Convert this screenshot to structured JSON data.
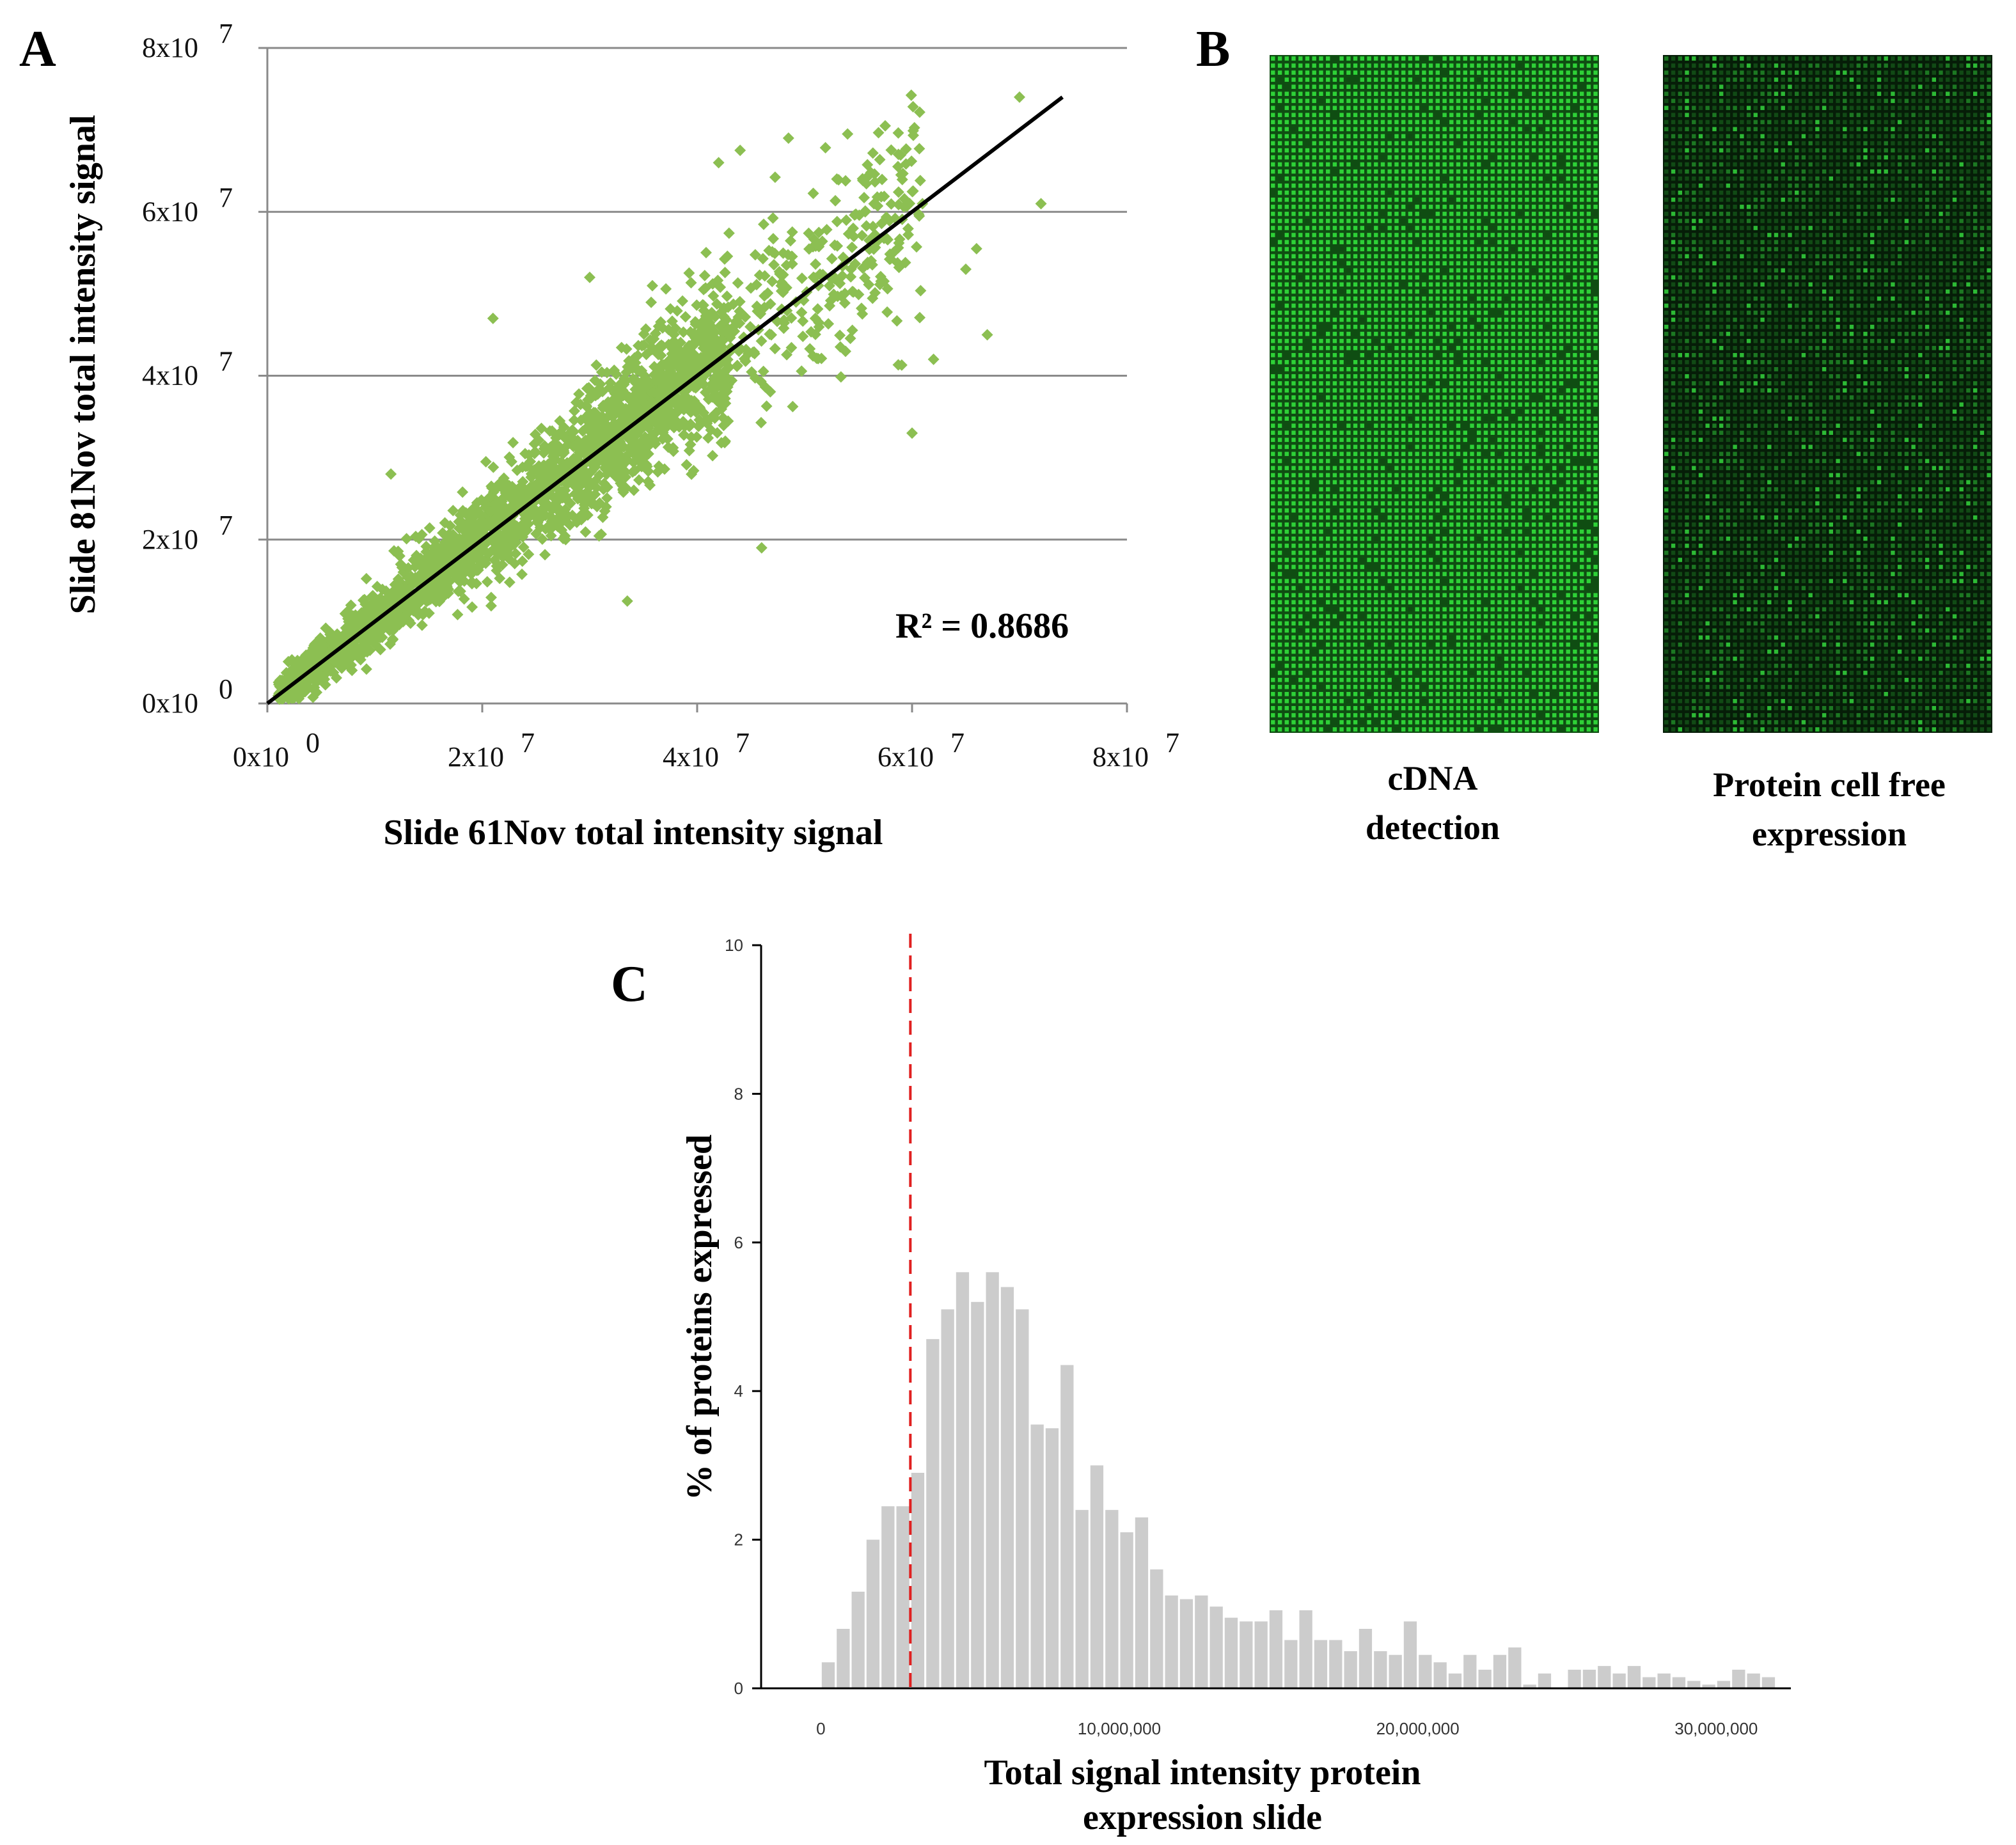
{
  "panels": {
    "a": {
      "letter": "A"
    },
    "b": {
      "letter": "B"
    },
    "c": {
      "letter": "C"
    }
  },
  "chart_data": [
    {
      "panel": "A",
      "type": "scatter",
      "xlabel": "Slide 61Nov  total intensity signal",
      "ylabel": "Slide 81Nov  total intensity signal",
      "x_ticks": [
        {
          "value": 0,
          "mant": "0x10",
          "exp": "0"
        },
        {
          "value": 20000000,
          "mant": "2x10",
          "exp": "7"
        },
        {
          "value": 40000000,
          "mant": "4x10",
          "exp": "7"
        },
        {
          "value": 60000000,
          "mant": "6x10",
          "exp": "7"
        },
        {
          "value": 80000000,
          "mant": "8x10",
          "exp": "7"
        }
      ],
      "y_ticks": [
        {
          "value": 0,
          "mant": "0x10",
          "exp": "0"
        },
        {
          "value": 20000000,
          "mant": "2x10",
          "exp": "7"
        },
        {
          "value": 40000000,
          "mant": "4x10",
          "exp": "7"
        },
        {
          "value": 60000000,
          "mant": "6x10",
          "exp": "7"
        },
        {
          "value": 80000000,
          "mant": "8x10",
          "exp": "7"
        }
      ],
      "xlim": [
        0,
        80000000
      ],
      "ylim": [
        0,
        80000000
      ],
      "grid": "horizontal",
      "point_color": "#8cbf52",
      "trendline": {
        "x": [
          0,
          74000000
        ],
        "y": [
          0,
          74000000
        ],
        "color": "#000000"
      },
      "r_squared_label": "R² = 0.8686",
      "n_points_approx": 2400,
      "outliers": [
        [
          70000000,
          74000000
        ],
        [
          72000000,
          61000000
        ],
        [
          66000000,
          55500000
        ],
        [
          67000000,
          45000000
        ],
        [
          60000000,
          33000000
        ],
        [
          46000000,
          19000000
        ],
        [
          33500000,
          12500000
        ],
        [
          21000000,
          47000000
        ],
        [
          48500000,
          69000000
        ],
        [
          54000000,
          69500000
        ],
        [
          57500000,
          70500000
        ],
        [
          44000000,
          67500000
        ],
        [
          11500000,
          28000000
        ],
        [
          62000000,
          42000000
        ],
        [
          65000000,
          53000000
        ],
        [
          42000000,
          66000000
        ],
        [
          53000000,
          64000000
        ],
        [
          56000000,
          64500000
        ],
        [
          30000000,
          52000000
        ],
        [
          51000000,
          47000000
        ]
      ]
    },
    {
      "panel": "C",
      "type": "bar",
      "xlabel_lines": [
        "Total signal intensity protein",
        "expression slide"
      ],
      "ylabel": "% of proteins expressed",
      "x_ticks": [
        {
          "value": 0,
          "label": "0"
        },
        {
          "value": 10000000,
          "label": "10,000,000"
        },
        {
          "value": 20000000,
          "label": "20,000,000"
        },
        {
          "value": 30000000,
          "label": "30,000,000"
        }
      ],
      "y_ticks": [
        0,
        2,
        4,
        6,
        8,
        10
      ],
      "xlim": [
        -2000000,
        32500000
      ],
      "ylim": [
        0,
        10
      ],
      "bin_start": 0,
      "bin_width": 500000,
      "values": [
        0.35,
        0.8,
        1.3,
        2.0,
        2.45,
        2.45,
        2.9,
        4.7,
        5.1,
        5.6,
        5.2,
        5.6,
        5.4,
        5.1,
        3.55,
        3.5,
        4.35,
        2.4,
        3.0,
        2.4,
        2.1,
        2.3,
        1.6,
        1.25,
        1.2,
        1.25,
        1.1,
        0.95,
        0.9,
        0.9,
        1.05,
        0.65,
        1.05,
        0.65,
        0.65,
        0.5,
        0.8,
        0.5,
        0.45,
        0.9,
        0.45,
        0.35,
        0.2,
        0.45,
        0.25,
        0.45,
        0.55,
        0.05,
        0.2,
        0.0,
        0.25,
        0.25,
        0.3,
        0.2,
        0.3,
        0.15,
        0.2,
        0.15,
        0.1,
        0.05,
        0.1,
        0.25,
        0.2,
        0.15
      ],
      "bar_color": "#cccccc",
      "threshold": {
        "x": 3000000,
        "color": "#e02020",
        "style": "dashed"
      }
    }
  ],
  "images": {
    "left": {
      "caption_lines": [
        "cDNA",
        "detection"
      ],
      "kind": "cDNA array fluorescence image",
      "base": "#0f4d12",
      "spot": "#32e03c",
      "cols": 48,
      "rows": 96
    },
    "right": {
      "caption_lines": [
        "Protein cell free",
        "expression"
      ],
      "kind": "protein expression array fluorescence image",
      "base": "#061d08",
      "spot": "#2fc338",
      "cols": 48,
      "rows": 96
    }
  }
}
